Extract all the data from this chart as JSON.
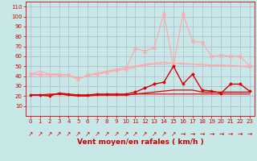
{
  "x": [
    0,
    1,
    2,
    3,
    4,
    5,
    6,
    7,
    8,
    9,
    10,
    11,
    12,
    13,
    14,
    15,
    16,
    17,
    18,
    19,
    20,
    21,
    22,
    23
  ],
  "series": [
    {
      "name": "line_pink1",
      "color": "#ffaaaa",
      "lw": 0.9,
      "marker": null,
      "values": [
        42,
        45,
        42,
        42,
        41,
        37,
        41,
        43,
        45,
        47,
        49,
        50,
        52,
        53,
        54,
        53,
        53,
        52,
        52,
        51,
        51,
        51,
        50,
        50
      ]
    },
    {
      "name": "line_pink2",
      "color": "#ffaaaa",
      "lw": 0.9,
      "marker": null,
      "values": [
        42,
        41,
        42,
        42,
        41,
        38,
        40,
        43,
        44,
        46,
        47,
        49,
        51,
        52,
        52,
        53,
        52,
        52,
        51,
        51,
        51,
        50,
        50,
        49
      ]
    },
    {
      "name": "line_pink3_peaks",
      "color": "#ffaaaa",
      "lw": 0.9,
      "marker": "x",
      "markersize": 3,
      "values": [
        42,
        42,
        41,
        41,
        41,
        37,
        41,
        42,
        44,
        46,
        47,
        68,
        65,
        69,
        103,
        50,
        103,
        75,
        74,
        60,
        61,
        60,
        60,
        50
      ]
    },
    {
      "name": "line_red1",
      "color": "#dd0000",
      "lw": 1.0,
      "marker": "D",
      "markersize": 1.5,
      "values": [
        21,
        21,
        20,
        23,
        22,
        21,
        21,
        22,
        22,
        22,
        22,
        24,
        28,
        32,
        34,
        50,
        32,
        42,
        26,
        25,
        23,
        32,
        32,
        25
      ]
    },
    {
      "name": "line_red2",
      "color": "#dd0000",
      "lw": 0.9,
      "marker": null,
      "values": [
        21,
        21,
        21,
        22,
        21,
        20,
        20,
        21,
        21,
        21,
        21,
        22,
        23,
        24,
        25,
        26,
        26,
        26,
        24,
        24,
        24,
        24,
        24,
        24
      ]
    },
    {
      "name": "line_red3",
      "color": "#dd0000",
      "lw": 0.8,
      "marker": null,
      "values": [
        21,
        21,
        22,
        22,
        21,
        21,
        21,
        21,
        21,
        21,
        21,
        22,
        22,
        22,
        22,
        22,
        22,
        22,
        22,
        22,
        22,
        22,
        22,
        22
      ]
    }
  ],
  "wind_angles": [
    45,
    45,
    45,
    45,
    45,
    45,
    45,
    45,
    45,
    45,
    45,
    45,
    45,
    45,
    45,
    45,
    0,
    0,
    0,
    0,
    0,
    0,
    0,
    0
  ],
  "xlabel": "Vent moyen/en rafales ( km/h )",
  "xlim": [
    -0.5,
    23.5
  ],
  "ylim": [
    0,
    115
  ],
  "yticks": [
    10,
    20,
    30,
    40,
    50,
    60,
    70,
    80,
    90,
    100,
    110
  ],
  "xticks": [
    0,
    1,
    2,
    3,
    4,
    5,
    6,
    7,
    8,
    9,
    10,
    11,
    12,
    13,
    14,
    15,
    16,
    17,
    18,
    19,
    20,
    21,
    22,
    23
  ],
  "background_color": "#c8e8e8",
  "grid_color": "#aaaacc",
  "line_color": "#cc0000",
  "xlabel_color": "#cc0000",
  "tick_color": "#cc0000",
  "tick_fontsize": 5,
  "xlabel_fontsize": 6.5
}
